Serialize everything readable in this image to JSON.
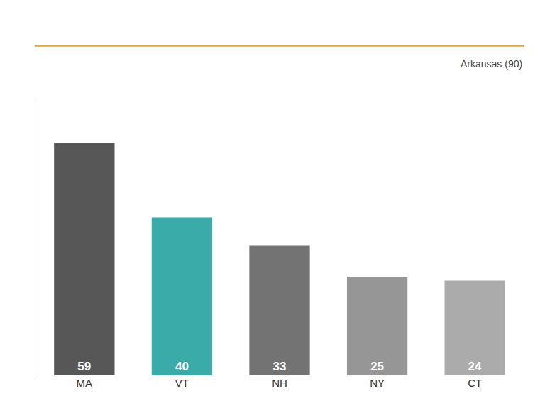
{
  "chart_data": {
    "type": "bar",
    "categories": [
      "MA",
      "VT",
      "NH",
      "NY",
      "CT"
    ],
    "values": [
      59,
      40,
      33,
      25,
      24
    ],
    "colors": [
      "#575757",
      "#3aaba8",
      "#737373",
      "#969696",
      "#ababab"
    ],
    "ylim": [
      0,
      70
    ],
    "grid": false,
    "data_labels": true,
    "tick_labels": "x",
    "annotations": [
      "Arkansas (90)"
    ]
  }
}
